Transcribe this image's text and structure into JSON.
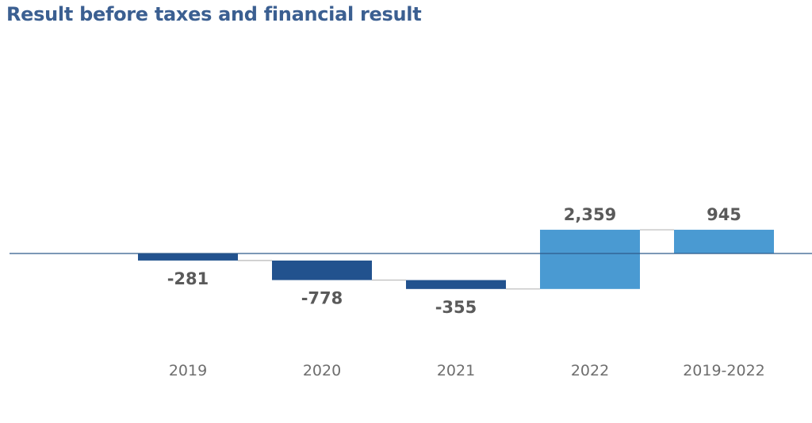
{
  "chart_data": {
    "type": "bar",
    "subtype": "waterfall",
    "title": "Result before taxes and financial result",
    "xlabel": "",
    "ylabel": "",
    "categories": [
      "2019",
      "2020",
      "2021",
      "2022",
      "2019-2022"
    ],
    "values": [
      -281,
      -778,
      -355,
      2359,
      945
    ],
    "labels": [
      "-281",
      "-778",
      "-355",
      "2,359",
      "945"
    ],
    "is_total": [
      false,
      false,
      false,
      false,
      true
    ],
    "colors": {
      "negative": "#22528e",
      "positive": "#4a9ad2",
      "total": "#4a9ad2",
      "title": "#3b5f91",
      "baseline": "#2f5a8a",
      "connector": "#b8b8b8"
    },
    "grid": false,
    "legend": "none"
  }
}
